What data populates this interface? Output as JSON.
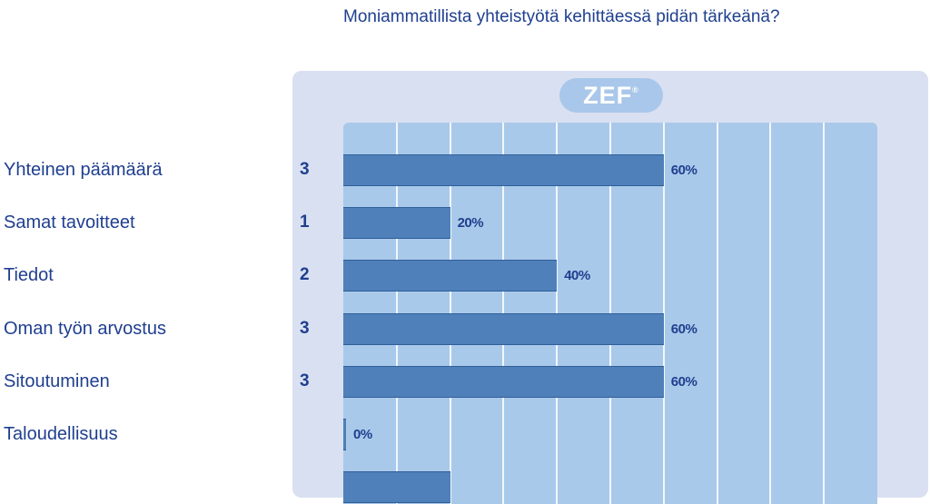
{
  "chart_data": {
    "type": "bar",
    "orientation": "horizontal",
    "title": "Moniammatillista yhteistyötä kehittäessä pidän tärkeänä?",
    "logo_text": "ZEF",
    "logo_mark": "®",
    "xlim": [
      0,
      100
    ],
    "categories": [
      "Yhteinen päämäärä",
      "Samat tavoitteet",
      "Tiedot",
      "Oman työn arvostus",
      "Sitoutuminen",
      "Taloudellisuus"
    ],
    "counts": [
      "3",
      "1",
      "2",
      "3",
      "3",
      ""
    ],
    "values": [
      60,
      20,
      40,
      60,
      60,
      0
    ],
    "value_labels": [
      "60%",
      "20%",
      "40%",
      "60%",
      "60%",
      "0%"
    ],
    "truncated_bar_value": 20,
    "colors": {
      "bar": "#4f80b9",
      "plot_background": "#a9c9ea",
      "panel_background": "#d9e0f1",
      "text": "#1f3f8f"
    }
  }
}
